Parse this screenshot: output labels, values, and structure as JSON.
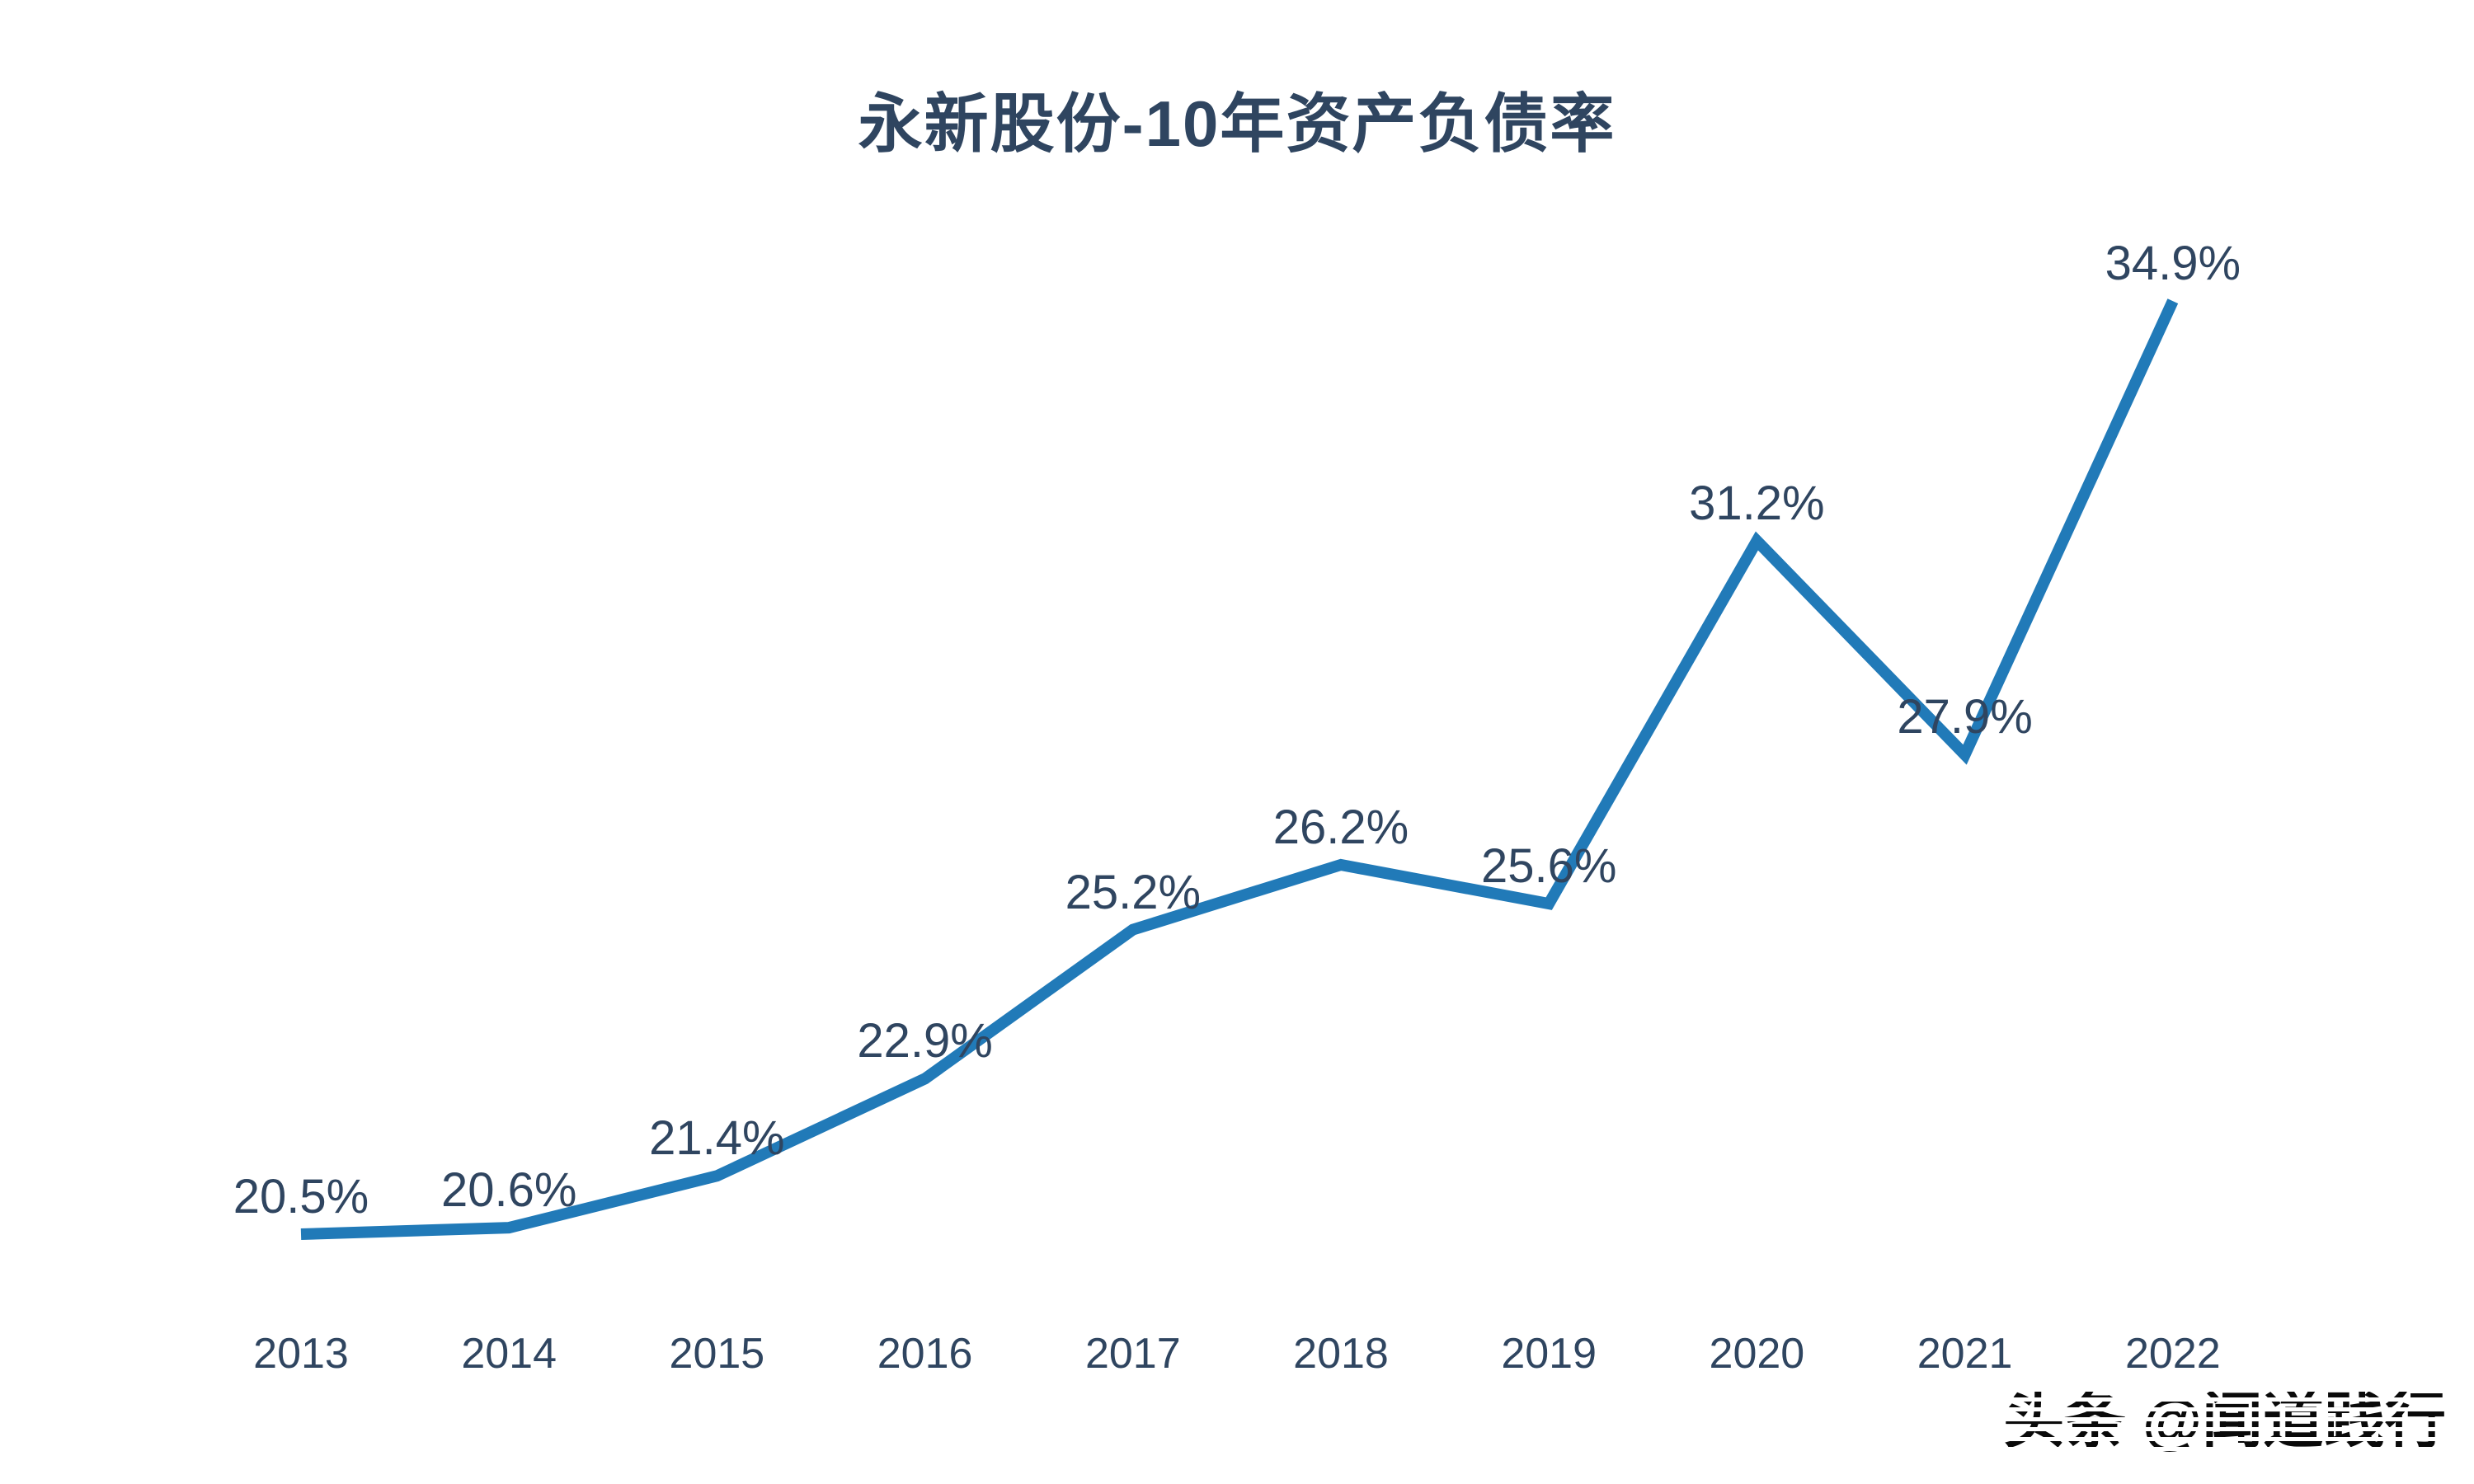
{
  "chart_data": {
    "type": "line",
    "title": "永新股份-10年资产负债率",
    "categories": [
      "2013",
      "2014",
      "2015",
      "2016",
      "2017",
      "2018",
      "2019",
      "2020",
      "2021",
      "2022"
    ],
    "series": [
      {
        "name": "资产负债率",
        "values": [
          20.5,
          20.6,
          21.4,
          22.9,
          25.2,
          26.2,
          25.6,
          31.2,
          27.9,
          34.9
        ]
      }
    ],
    "data_labels": [
      "20.5%",
      "20.6%",
      "21.4%",
      "22.9%",
      "25.2%",
      "26.2%",
      "25.6%",
      "31.2%",
      "27.9%",
      "34.9%"
    ],
    "xlabel": "",
    "ylabel": "",
    "ylim": [
      19.8,
      36.5
    ],
    "grid": false,
    "legend_position": "none",
    "line_color": "#217AB8",
    "text_color": "#2F4560"
  },
  "watermark": {
    "text": "头条 @闻道践行"
  }
}
